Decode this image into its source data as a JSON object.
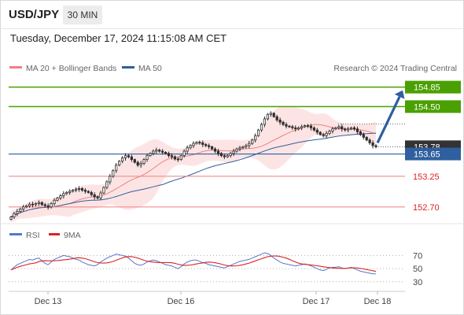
{
  "header": {
    "symbol": "USD/JPY",
    "timeframe": "30 MIN",
    "datetime": "Tuesday, December 17, 2024 11:15:08 AM CET"
  },
  "legend": {
    "bollinger": "MA 20 + Bollinger Bands",
    "ma50": "MA 50",
    "credit": "Research © 2024 Trading Central",
    "rsi": "RSI",
    "rsi_ma": "9MA"
  },
  "colors": {
    "candle": "#2d2d2d",
    "bollinger_fill": "#fde4e4",
    "bollinger_line": "#f08080",
    "ma50": "#2f5f9e",
    "resistance": "#4aa000",
    "support": "#f28b8b",
    "pivot": "#2f5f9e",
    "current": "#333333",
    "arrow": "#2f5f9e",
    "rsi": "#5577cc",
    "rsi_ma": "#dd2222"
  },
  "chart_data": [
    {
      "type": "candlestick",
      "series_note": "USD/JPY 30-minute candles with MA 20, Bollinger Bands and MA 50",
      "x_ticks": [
        "Dec 13",
        "Dec 16",
        "Dec 17",
        "Dec 18"
      ],
      "ylim": [
        152.4,
        155.0
      ],
      "levels": [
        {
          "value": 154.85,
          "label": "154.85",
          "kind": "resistance"
        },
        {
          "value": 154.5,
          "label": "154.50",
          "kind": "resistance"
        },
        {
          "value": 153.65,
          "label": "153.65",
          "kind": "pivot"
        },
        {
          "value": 153.25,
          "label": "153.25",
          "kind": "support"
        },
        {
          "value": 152.7,
          "label": "152.70",
          "kind": "support"
        }
      ],
      "current_price": {
        "value": 153.78,
        "label": "153.78"
      },
      "projection": {
        "from": 153.85,
        "to": 154.85,
        "direction": "up"
      },
      "close": [
        152.52,
        152.58,
        152.62,
        152.66,
        152.7,
        152.72,
        152.75,
        152.74,
        152.76,
        152.78,
        152.74,
        152.72,
        152.7,
        152.76,
        152.82,
        152.86,
        152.9,
        152.94,
        152.96,
        152.98,
        153.0,
        153.02,
        153.03,
        153.0,
        152.98,
        152.96,
        152.92,
        152.88,
        152.86,
        152.95,
        153.05,
        153.15,
        153.25,
        153.35,
        153.45,
        153.52,
        153.58,
        153.62,
        153.6,
        153.55,
        153.5,
        153.45,
        153.48,
        153.55,
        153.62,
        153.66,
        153.7,
        153.72,
        153.7,
        153.68,
        153.66,
        153.62,
        153.6,
        153.56,
        153.55,
        153.62,
        153.7,
        153.76,
        153.8,
        153.84,
        153.86,
        153.85,
        153.82,
        153.8,
        153.78,
        153.74,
        153.7,
        153.66,
        153.62,
        153.6,
        153.62,
        153.66,
        153.7,
        153.74,
        153.76,
        153.78,
        153.8,
        153.84,
        153.9,
        153.98,
        154.08,
        154.18,
        154.28,
        154.36,
        154.38,
        154.32,
        154.26,
        154.22,
        154.18,
        154.15,
        154.14,
        154.12,
        154.1,
        154.12,
        154.14,
        154.16,
        154.15,
        154.12,
        154.08,
        154.04,
        154.0,
        153.98,
        154.02,
        154.06,
        154.1,
        154.12,
        154.14,
        154.1,
        154.08,
        154.1,
        154.12,
        154.1,
        154.05,
        154.0,
        153.95,
        153.9,
        153.85,
        153.8,
        153.78
      ],
      "rsi": [
        48,
        52,
        56,
        58,
        60,
        62,
        64,
        63,
        65,
        66,
        62,
        58,
        56,
        60,
        64,
        66,
        68,
        70,
        69,
        68,
        66,
        64,
        63,
        60,
        58,
        56,
        55,
        54,
        56,
        60,
        63,
        66,
        68,
        70,
        72,
        71,
        70,
        69,
        66,
        62,
        58,
        56,
        55,
        57,
        60,
        62,
        63,
        62,
        60,
        58,
        56,
        55,
        54,
        52,
        50,
        53,
        57,
        60,
        62,
        63,
        63,
        61,
        59,
        58,
        56,
        55,
        54,
        53,
        52,
        51,
        53,
        55,
        57,
        59,
        61,
        62,
        63,
        64,
        66,
        68,
        70,
        72,
        74,
        73,
        70,
        66,
        63,
        60,
        58,
        57,
        56,
        55,
        54,
        55,
        56,
        57,
        56,
        54,
        52,
        50,
        48,
        47,
        49,
        51,
        52,
        52,
        53,
        51,
        50,
        51,
        52,
        50,
        48,
        46,
        45,
        44,
        43,
        42,
        42
      ],
      "rsi_ticks": [
        70,
        50,
        30
      ]
    }
  ]
}
